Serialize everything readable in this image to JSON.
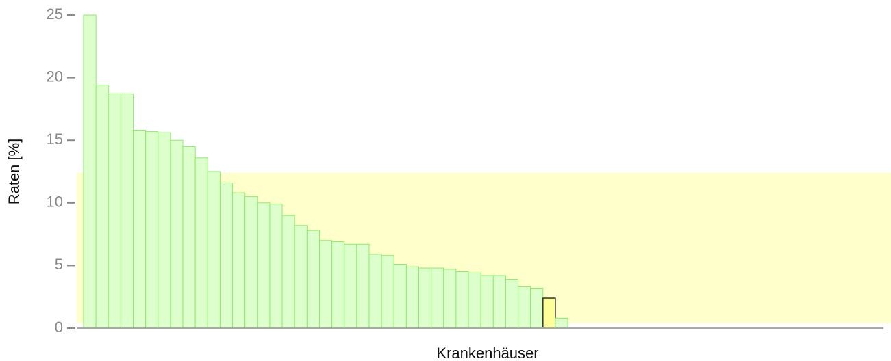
{
  "chart_data": {
    "type": "bar",
    "ylabel": "Raten  [%]",
    "xlabel": "Krankenhäuser",
    "categories": [
      null,
      null,
      null,
      null,
      null,
      null,
      null,
      null,
      null,
      null,
      null,
      null,
      null,
      null,
      null,
      null,
      null,
      null,
      null,
      null,
      null,
      null,
      null,
      null,
      null,
      null,
      null,
      null,
      null,
      null,
      null,
      null,
      null,
      null,
      null,
      null,
      null,
      null,
      null
    ],
    "values": [
      25,
      19.4,
      18.7,
      18.7,
      15.8,
      15.7,
      15.6,
      15.0,
      14.5,
      13.6,
      12.5,
      11.6,
      10.8,
      10.5,
      10.0,
      9.9,
      9.0,
      8.2,
      7.8,
      7.0,
      6.9,
      6.7,
      6.7,
      5.9,
      5.8,
      5.1,
      4.9,
      4.8,
      4.8,
      4.7,
      4.5,
      4.4,
      4.2,
      4.2,
      3.9,
      3.3,
      3.2,
      2.4,
      0.8
    ],
    "color": "#ddffcc",
    "edge_color": "#88ee66",
    "highlight_index": 37,
    "highlight_color": "#ffff99",
    "highlight_edge_color": "#333333",
    "reference_range": [
      0.4,
      12.4
    ],
    "reference_color": "#ffffcc",
    "ylim": [
      0,
      25
    ],
    "yticks": [
      0,
      5,
      10,
      15,
      20,
      25
    ]
  }
}
